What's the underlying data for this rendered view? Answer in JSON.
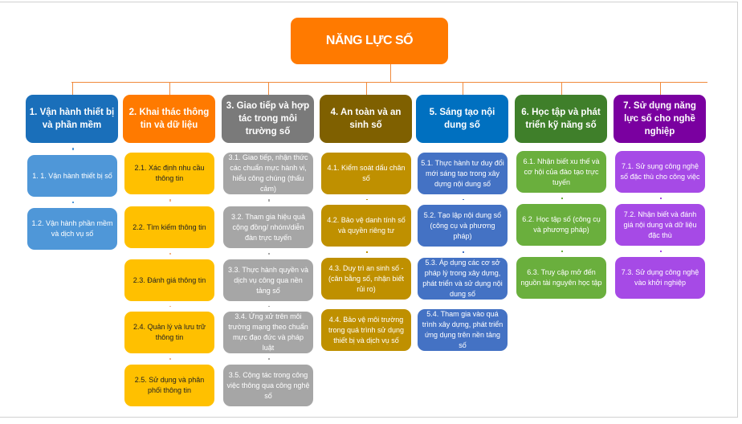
{
  "title": "NĂNG LỰC SỐ",
  "colors": {
    "connector": "#f08a3c"
  },
  "columns": [
    {
      "header": "1. Vận hành thiết bị và phần mềm",
      "header_color": "#1a6fba",
      "child_color": "#4f97d8",
      "child_text_color": "#ffffff",
      "children": [
        "1. 1. Vận hành thiết bị số",
        "1.2. Vận hành phần mềm và dịch vụ số"
      ]
    },
    {
      "header": "2. Khai thác thông tin và dữ liệu",
      "header_color": "#ff7a00",
      "child_color": "#ffc000",
      "child_text_color": "#222222",
      "children": [
        "2.1. Xác định nhu cầu thông tin",
        "2.2. Tìm kiếm thông tin",
        "2.3. Đánh giá thông tin",
        "2.4. Quản lý và lưu trữ thông tin",
        "2.5. Sử dụng và phân phối thông tin"
      ]
    },
    {
      "header": "3. Giao tiếp và hợp tác trong môi trường số",
      "header_color": "#7a7a7a",
      "child_color": "#a6a6a6",
      "child_text_color": "#ffffff",
      "children": [
        "3.1. Giao tiếp, nhận thức các chuẩn mực hành vi, hiểu công chúng (thấu cảm)",
        "3.2. Tham gia hiệu quả cộng đồng/ nhóm/diễn đàn trực tuyến",
        "3.3. Thực hành quyền và dịch vụ công qua nền tảng số",
        "3.4. Ứng xử trên môi trường mạng theo chuẩn mực đạo đức và pháp luật",
        "3.5. Cộng tác trong công việc thông qua công nghệ số"
      ]
    },
    {
      "header": "4. An toàn và an sinh số",
      "header_color": "#7f6000",
      "child_color": "#bf9000",
      "child_text_color": "#ffffff",
      "children": [
        "4.1. Kiểm soát dấu chân số",
        "4.2. Bảo vệ danh tính số và quyền riêng tư",
        "4.3. Duy trì an sinh số - (cân bằng số, nhận biết rủi ro)",
        "4.4. Bảo vệ môi trường trong quá trình sử dụng thiết bị và dịch vụ số"
      ]
    },
    {
      "header": "5. Sáng tạo nội dung số",
      "header_color": "#0070c0",
      "child_color": "#4472c4",
      "child_text_color": "#ffffff",
      "children": [
        "5.1. Thực hành tư duy đổi mới sáng tạo trong xây dựng nội dung số",
        "5.2. Tạo lập nội dung số (công cụ và phương pháp)",
        "5.3. Áp dụng các cơ sở pháp lý trong xây dựng, phát triển và sử dụng nội dung số",
        "5.4. Tham gia vào quá trình xây dựng, phát triển ứng dụng trên nền tảng số"
      ]
    },
    {
      "header": "6. Học tập và phát triển kỹ năng số",
      "header_color": "#3f7f2a",
      "child_color": "#6aaf3d",
      "child_text_color": "#ffffff",
      "children": [
        "6.1. Nhận biết xu thế và cơ hội của đào tạo trực tuyến",
        "6.2. Học tập số (công cụ và phương pháp)",
        "6.3. Truy cập mở đến nguồn tài nguyên học tập"
      ]
    },
    {
      "header": "7. Sử dụng năng lực số cho nghề nghiệp",
      "header_color": "#7a00a0",
      "child_color": "#a64ae6",
      "child_text_color": "#ffffff",
      "children": [
        "7.1. Sử sụng công nghệ số đặc thù cho công việc",
        "7.2. Nhận biết và đánh giá nội dung và dữ liệu đặc thù",
        "7.3. Sử dụng công nghệ vào khởi nghiệp"
      ]
    }
  ]
}
